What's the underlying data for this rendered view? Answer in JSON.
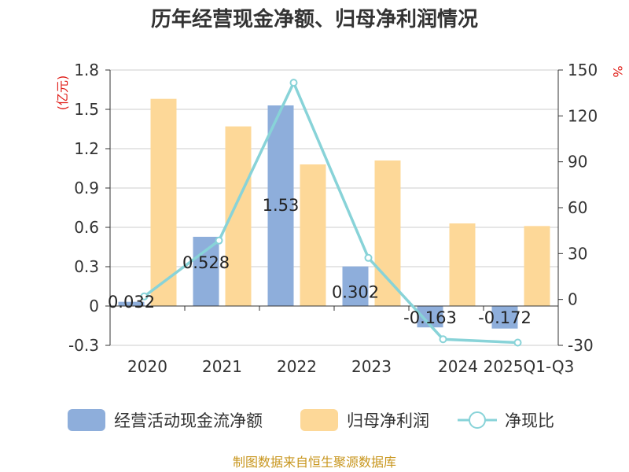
{
  "chart_data": {
    "type": "bar",
    "title": "历年经营现金净额、归母净利润情况",
    "categories": [
      "2020",
      "2021",
      "2022",
      "2023",
      "2024",
      "2025Q1-Q3"
    ],
    "y_left": {
      "unit": "(亿元)",
      "min": -0.3,
      "max": 1.8,
      "ticks": [
        "-0.3",
        "0",
        "0.3",
        "0.6",
        "0.9",
        "1.2",
        "1.5",
        "1.8"
      ]
    },
    "y_right": {
      "unit": "%",
      "min": -30,
      "max": 150,
      "ticks": [
        "-30",
        "0",
        "30",
        "60",
        "90",
        "120",
        "150"
      ]
    },
    "grid": true,
    "legend_position": "bottom",
    "series": [
      {
        "name": "经营活动现金流净额",
        "type": "bar",
        "axis": "left",
        "color": "#8eaedb",
        "values": [
          0.032,
          0.528,
          1.53,
          0.302,
          -0.163,
          -0.172
        ],
        "labels": [
          "0.032",
          "0.528",
          "1.53",
          "0.302",
          "-0.163",
          "-0.172"
        ]
      },
      {
        "name": "归母净利润",
        "type": "bar",
        "axis": "left",
        "color": "#fdd898",
        "values": [
          1.58,
          1.37,
          1.08,
          1.11,
          0.63,
          0.61
        ]
      },
      {
        "name": "净现比",
        "type": "line",
        "axis": "right",
        "color": "#88d3d8",
        "values": [
          2.0,
          38.5,
          141.7,
          27.2,
          -26.0,
          -28.2
        ]
      }
    ],
    "source": "制图数据来自恒生聚源数据库"
  }
}
